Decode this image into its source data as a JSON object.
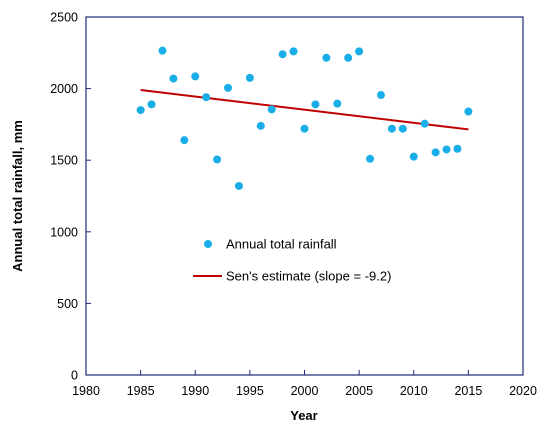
{
  "chart_data": {
    "type": "scatter",
    "title": "",
    "xlabel": "Year",
    "ylabel": "Annual total rainfall, mm",
    "xlim": [
      1980,
      2020
    ],
    "ylim": [
      0,
      2500
    ],
    "xticks": [
      "1980",
      "1985",
      "1990",
      "1995",
      "2000",
      "2005",
      "2010",
      "2015",
      "2020"
    ],
    "yticks": [
      "0",
      "500",
      "1000",
      "1500",
      "2000",
      "2500"
    ],
    "grid": false,
    "legend_position": "center",
    "series": [
      {
        "name": "Annual total rainfall",
        "kind": "scatter",
        "color": "#1aaee8",
        "x": [
          1985,
          1986,
          1987,
          1988,
          1989,
          1990,
          1991,
          1992,
          1993,
          1994,
          1995,
          1996,
          1997,
          1998,
          1999,
          2000,
          2001,
          2002,
          2003,
          2004,
          2005,
          2006,
          2007,
          2008,
          2009,
          2010,
          2011,
          2012,
          2013,
          2014,
          2015
        ],
        "y": [
          1850,
          1890,
          2265,
          2070,
          1640,
          2085,
          1940,
          1505,
          2005,
          1320,
          2075,
          1740,
          1855,
          2240,
          2260,
          1720,
          1890,
          2215,
          1895,
          2215,
          2260,
          1510,
          1955,
          1720,
          1720,
          1525,
          1755,
          1555,
          1575,
          1580,
          1840
        ]
      },
      {
        "name": "Sen's estimate (slope = -9.2)",
        "kind": "line",
        "color": "#c00000",
        "x": [
          1985,
          2015
        ],
        "y": [
          1990,
          1715
        ]
      }
    ]
  }
}
